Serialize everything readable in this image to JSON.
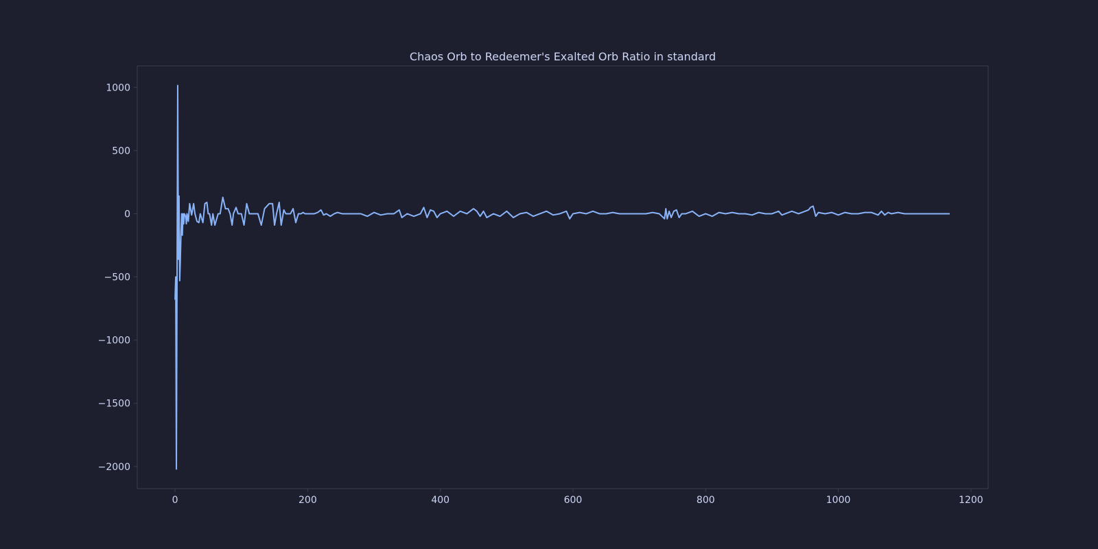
{
  "chart_data": {
    "type": "line",
    "title": "Chaos Orb to Redeemer's Exalted Orb Ratio in standard",
    "xlabel": "",
    "ylabel": "",
    "xlim": [
      -57,
      1226
    ],
    "ylim": [
      -2175,
      1170
    ],
    "x_ticks": [
      0,
      200,
      400,
      600,
      800,
      1000,
      1200
    ],
    "y_ticks": [
      1000,
      500,
      0,
      -500,
      -1000,
      -1500,
      -2000
    ],
    "grid": false,
    "legend": "none",
    "colors": {
      "background": "#1e1f2e",
      "axes_face": "#1e1f2e",
      "frame": "#3a3c4e",
      "text": "#cdd6f4",
      "line": "#89b4fa"
    },
    "series": [
      {
        "x": [
          0,
          1,
          2,
          3,
          4,
          5,
          6,
          7,
          8,
          9,
          10,
          11,
          12,
          13,
          14,
          15,
          16,
          17,
          18,
          20,
          22,
          25,
          28,
          30,
          33,
          36,
          38,
          42,
          45,
          48,
          50,
          52,
          55,
          57,
          60,
          65,
          68,
          72,
          76,
          80,
          83,
          86,
          88,
          92,
          95,
          100,
          104,
          108,
          112,
          117,
          119,
          121,
          125,
          130,
          135,
          142,
          147,
          150,
          153,
          157,
          160,
          164,
          167,
          170,
          174,
          178,
          182,
          186,
          190,
          193,
          196,
          200,
          205,
          210,
          215,
          220,
          224,
          228,
          234,
          240,
          245,
          252,
          260,
          270,
          280,
          290,
          300,
          310,
          320,
          330,
          338,
          342,
          350,
          360,
          370,
          375,
          380,
          385,
          390,
          395,
          400,
          410,
          420,
          430,
          440,
          450,
          455,
          460,
          465,
          470,
          480,
          490,
          500,
          510,
          520,
          530,
          540,
          550,
          560,
          570,
          580,
          590,
          595,
          600,
          610,
          620,
          630,
          640,
          650,
          660,
          670,
          680,
          690,
          700,
          710,
          720,
          730,
          738,
          740,
          742,
          745,
          748,
          752,
          756,
          760,
          764,
          770,
          780,
          790,
          800,
          810,
          820,
          830,
          840,
          850,
          860,
          870,
          880,
          890,
          900,
          910,
          915,
          920,
          930,
          940,
          950,
          955,
          958,
          962,
          966,
          970,
          980,
          990,
          1000,
          1010,
          1020,
          1030,
          1040,
          1050,
          1060,
          1065,
          1070,
          1075,
          1080,
          1090,
          1100,
          1110,
          1120,
          1130,
          1140,
          1150,
          1160,
          1168
        ],
        "y": [
          -680,
          -500,
          -2020,
          -520,
          1015,
          -360,
          140,
          -530,
          -360,
          -150,
          0,
          -170,
          0,
          -80,
          0,
          -10,
          -20,
          -80,
          0,
          -60,
          80,
          -10,
          80,
          0,
          -60,
          -70,
          0,
          -70,
          80,
          90,
          0,
          0,
          -90,
          0,
          -90,
          0,
          0,
          130,
          40,
          40,
          0,
          -90,
          0,
          50,
          0,
          0,
          -90,
          80,
          0,
          0,
          0,
          0,
          0,
          -90,
          40,
          80,
          80,
          -90,
          0,
          90,
          -90,
          30,
          0,
          0,
          0,
          40,
          -70,
          0,
          0,
          10,
          0,
          0,
          0,
          0,
          10,
          30,
          -10,
          0,
          -20,
          0,
          10,
          0,
          0,
          0,
          0,
          -20,
          10,
          -10,
          0,
          0,
          30,
          -30,
          0,
          -20,
          0,
          50,
          -30,
          30,
          20,
          -30,
          0,
          20,
          -20,
          20,
          0,
          40,
          20,
          -20,
          20,
          -30,
          0,
          -20,
          20,
          -30,
          0,
          10,
          -20,
          0,
          20,
          -10,
          0,
          20,
          -40,
          0,
          10,
          0,
          20,
          0,
          0,
          10,
          0,
          0,
          0,
          0,
          0,
          10,
          0,
          -40,
          40,
          -40,
          20,
          -30,
          20,
          30,
          -30,
          0,
          0,
          20,
          -20,
          0,
          -20,
          10,
          0,
          10,
          0,
          0,
          -10,
          10,
          0,
          0,
          20,
          -10,
          0,
          20,
          0,
          20,
          30,
          50,
          60,
          -20,
          10,
          0,
          10,
          -10,
          10,
          0,
          0,
          10,
          10,
          -10,
          20,
          -10,
          10,
          0,
          10,
          0,
          0,
          0,
          0,
          0,
          0,
          0,
          0
        ]
      }
    ]
  }
}
